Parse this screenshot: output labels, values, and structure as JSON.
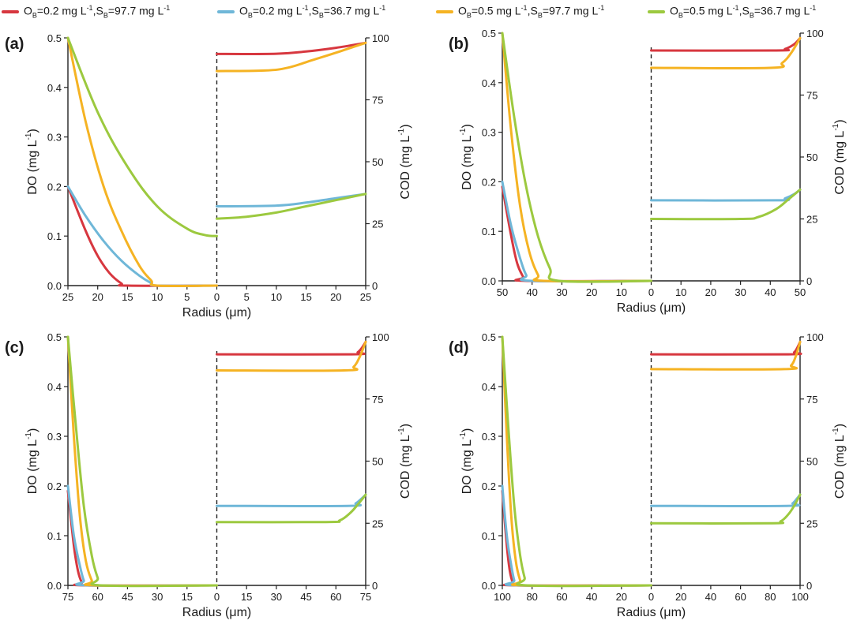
{
  "legend": [
    {
      "o": "0.2",
      "s": "97.7",
      "color": "#d7373f"
    },
    {
      "o": "0.2",
      "s": "36.7",
      "color": "#6fb7d8"
    },
    {
      "o": "0.5",
      "s": "97.7",
      "color": "#f5b323"
    },
    {
      "o": "0.5",
      "s": "36.7",
      "color": "#9cc93f"
    }
  ],
  "legend_text": {
    "O": "O",
    "S": "S",
    "B": "B",
    "mid1": "=",
    "mid2": " mg L",
    "exp": "-1",
    "sep": ",",
    "equals": "=",
    "tail": " mg L"
  },
  "chart_data": [
    {
      "panel": "(a)",
      "type": "line",
      "xlabel": "Radius (μm)",
      "ylabel_left": "DO (mg L",
      "ylabel_right": "COD (mg L",
      "ylabel_exp": "-1",
      "ylabel_close": ")",
      "radius_max": 25,
      "x_ticks_left": [
        "25",
        "20",
        "15",
        "10",
        "5",
        "0"
      ],
      "x_ticks_right": [
        "0",
        "5",
        "10",
        "15",
        "20",
        "25"
      ],
      "ylim_do": [
        0,
        0.5
      ],
      "yticks_do": [
        "0.0",
        "0.1",
        "0.2",
        "0.3",
        "0.4",
        "0.5"
      ],
      "ylim_cod": [
        0,
        100
      ],
      "yticks_cod": [
        "0",
        "25",
        "50",
        "75",
        "100"
      ],
      "do_series": [
        {
          "color": "#d7373f",
          "x": [
            25,
            22,
            20,
            18,
            16,
            15,
            0
          ],
          "y": [
            0.2,
            0.11,
            0.06,
            0.025,
            0.004,
            0,
            0
          ]
        },
        {
          "color": "#6fb7d8",
          "x": [
            25,
            22,
            19,
            16,
            13,
            11,
            10,
            0
          ],
          "y": [
            0.2,
            0.14,
            0.09,
            0.05,
            0.02,
            0.005,
            0,
            0
          ]
        },
        {
          "color": "#f5b323",
          "x": [
            25,
            22,
            19,
            16,
            13,
            11,
            10,
            0
          ],
          "y": [
            0.5,
            0.33,
            0.2,
            0.11,
            0.04,
            0.01,
            0,
            0
          ]
        },
        {
          "color": "#9cc93f",
          "x": [
            25,
            20,
            15,
            10,
            5,
            2,
            0
          ],
          "y": [
            0.5,
            0.35,
            0.24,
            0.16,
            0.115,
            0.102,
            0.1
          ]
        }
      ],
      "cod_series": [
        {
          "color": "#d7373f",
          "x": [
            0,
            10,
            15,
            20,
            25
          ],
          "y": [
            93.5,
            93.6,
            94.5,
            96,
            98
          ]
        },
        {
          "color": "#6fb7d8",
          "x": [
            0,
            10,
            15,
            20,
            25
          ],
          "y": [
            32,
            32.3,
            33.5,
            35.3,
            37
          ]
        },
        {
          "color": "#f5b323",
          "x": [
            0,
            8,
            12,
            16,
            20,
            25
          ],
          "y": [
            86.6,
            86.8,
            88,
            91,
            94,
            98
          ]
        },
        {
          "color": "#9cc93f",
          "x": [
            0,
            5,
            10,
            15,
            20,
            25
          ],
          "y": [
            27,
            27.8,
            29.5,
            32,
            34.5,
            37
          ]
        }
      ]
    },
    {
      "panel": "(b)",
      "type": "line",
      "xlabel": "Radius (μm)",
      "ylabel_left": "DO (mg L",
      "ylabel_right": "COD (mg L",
      "ylabel_exp": "-1",
      "ylabel_close": ")",
      "radius_max": 50,
      "x_ticks_left": [
        "50",
        "40",
        "30",
        "20",
        "10",
        "0"
      ],
      "x_ticks_right": [
        "0",
        "10",
        "20",
        "30",
        "40",
        "50"
      ],
      "ylim_do": [
        0,
        0.5
      ],
      "yticks_do": [
        "0.0",
        "0.1",
        "0.2",
        "0.3",
        "0.4",
        "0.5"
      ],
      "ylim_cod": [
        0,
        100
      ],
      "yticks_cod": [
        "0",
        "25",
        "50",
        "75",
        "100"
      ],
      "do_series": [
        {
          "color": "#d7373f",
          "x": [
            50,
            47,
            45,
            43,
            42,
            0
          ],
          "y": [
            0.19,
            0.09,
            0.035,
            0.008,
            0,
            0
          ]
        },
        {
          "color": "#6fb7d8",
          "x": [
            50,
            47,
            44,
            42,
            40,
            0
          ],
          "y": [
            0.2,
            0.11,
            0.045,
            0.012,
            0,
            0
          ]
        },
        {
          "color": "#f5b323",
          "x": [
            50,
            47,
            44,
            41,
            38,
            36,
            0
          ],
          "y": [
            0.5,
            0.3,
            0.15,
            0.06,
            0.012,
            0,
            0
          ]
        },
        {
          "color": "#9cc93f",
          "x": [
            50,
            46,
            42,
            38,
            34,
            31,
            0
          ],
          "y": [
            0.5,
            0.33,
            0.19,
            0.09,
            0.025,
            0,
            0
          ]
        }
      ],
      "cod_series": [
        {
          "color": "#d7373f",
          "x": [
            0,
            42,
            45,
            48,
            50
          ],
          "y": [
            93,
            93,
            93.6,
            95.5,
            98
          ]
        },
        {
          "color": "#6fb7d8",
          "x": [
            0,
            42,
            45,
            48,
            50
          ],
          "y": [
            32.5,
            32.5,
            33.3,
            35,
            36.8
          ]
        },
        {
          "color": "#f5b323",
          "x": [
            0,
            40,
            44,
            47,
            50
          ],
          "y": [
            86,
            86,
            88,
            92,
            98
          ]
        },
        {
          "color": "#9cc93f",
          "x": [
            0,
            30,
            36,
            42,
            46,
            50
          ],
          "y": [
            25,
            25,
            25.8,
            29,
            32.8,
            36.8
          ]
        }
      ]
    },
    {
      "panel": "(c)",
      "type": "line",
      "xlabel": "Radius (μm)",
      "ylabel_left": "DO (mg L",
      "ylabel_right": "COD (mg L",
      "ylabel_exp": "-1",
      "ylabel_close": ")",
      "radius_max": 75,
      "x_ticks_left": [
        "75",
        "60",
        "45",
        "30",
        "15",
        "0"
      ],
      "x_ticks_right": [
        "0",
        "15",
        "30",
        "45",
        "60",
        "75"
      ],
      "ylim_do": [
        0,
        0.5
      ],
      "yticks_do": [
        "0.0",
        "0.1",
        "0.2",
        "0.3",
        "0.4",
        "0.5"
      ],
      "ylim_cod": [
        0,
        100
      ],
      "yticks_cod": [
        "0",
        "25",
        "50",
        "75",
        "100"
      ],
      "do_series": [
        {
          "color": "#d7373f",
          "x": [
            75,
            72,
            70,
            68,
            66,
            0
          ],
          "y": [
            0.19,
            0.08,
            0.03,
            0.006,
            0,
            0
          ]
        },
        {
          "color": "#6fb7d8",
          "x": [
            75,
            72,
            69,
            67,
            65,
            0
          ],
          "y": [
            0.2,
            0.1,
            0.04,
            0.01,
            0,
            0
          ]
        },
        {
          "color": "#f5b323",
          "x": [
            75,
            72,
            69,
            66,
            63,
            61,
            0
          ],
          "y": [
            0.5,
            0.3,
            0.14,
            0.05,
            0.01,
            0,
            0
          ]
        },
        {
          "color": "#9cc93f",
          "x": [
            75,
            71,
            67,
            63,
            60,
            58,
            0
          ],
          "y": [
            0.5,
            0.32,
            0.16,
            0.06,
            0.015,
            0,
            0
          ]
        }
      ],
      "cod_series": [
        {
          "color": "#d7373f",
          "x": [
            0,
            68,
            71,
            73,
            75
          ],
          "y": [
            93,
            93,
            93.8,
            95.5,
            98
          ]
        },
        {
          "color": "#6fb7d8",
          "x": [
            0,
            66,
            70,
            73,
            75
          ],
          "y": [
            32,
            32,
            33,
            35,
            36.5
          ]
        },
        {
          "color": "#f5b323",
          "x": [
            0,
            64,
            69,
            72,
            75
          ],
          "y": [
            86.5,
            86.5,
            88,
            92,
            98
          ]
        },
        {
          "color": "#9cc93f",
          "x": [
            0,
            55,
            62,
            67,
            71,
            75
          ],
          "y": [
            25.5,
            25.5,
            26.2,
            29,
            32.5,
            36.5
          ]
        }
      ]
    },
    {
      "panel": "(d)",
      "type": "line",
      "xlabel": "Radius (μm)",
      "ylabel_left": "DO (mg L",
      "ylabel_right": "COD (mg L",
      "ylabel_exp": "-1",
      "ylabel_close": ")",
      "radius_max": 100,
      "x_ticks_left": [
        "100",
        "80",
        "60",
        "40",
        "20",
        "0"
      ],
      "x_ticks_right": [
        "0",
        "20",
        "40",
        "60",
        "80",
        "100"
      ],
      "ylim_do": [
        0,
        0.5
      ],
      "yticks_do": [
        "0.0",
        "0.1",
        "0.2",
        "0.3",
        "0.4",
        "0.5"
      ],
      "ylim_cod": [
        0,
        100
      ],
      "yticks_cod": [
        "0",
        "25",
        "50",
        "75",
        "100"
      ],
      "do_series": [
        {
          "color": "#d7373f",
          "x": [
            100,
            97,
            95,
            93,
            91,
            0
          ],
          "y": [
            0.19,
            0.08,
            0.03,
            0.006,
            0,
            0
          ]
        },
        {
          "color": "#6fb7d8",
          "x": [
            100,
            97,
            94,
            92,
            90,
            0
          ],
          "y": [
            0.2,
            0.1,
            0.04,
            0.01,
            0,
            0
          ]
        },
        {
          "color": "#f5b323",
          "x": [
            100,
            97,
            94,
            91,
            88,
            86,
            0
          ],
          "y": [
            0.5,
            0.3,
            0.14,
            0.05,
            0.01,
            0,
            0
          ]
        },
        {
          "color": "#9cc93f",
          "x": [
            100,
            96,
            92,
            88,
            85,
            83,
            0
          ],
          "y": [
            0.5,
            0.32,
            0.16,
            0.06,
            0.015,
            0,
            0
          ]
        }
      ],
      "cod_series": [
        {
          "color": "#d7373f",
          "x": [
            0,
            92,
            96,
            98,
            100
          ],
          "y": [
            93,
            93,
            93.8,
            95.5,
            98
          ]
        },
        {
          "color": "#6fb7d8",
          "x": [
            0,
            91,
            95,
            98,
            100
          ],
          "y": [
            32,
            32,
            33,
            35,
            36.5
          ]
        },
        {
          "color": "#f5b323",
          "x": [
            0,
            89,
            94,
            97,
            100
          ],
          "y": [
            87,
            87,
            88.5,
            92,
            98
          ]
        },
        {
          "color": "#9cc93f",
          "x": [
            0,
            80,
            87,
            92,
            96,
            100
          ],
          "y": [
            25,
            25,
            25.8,
            28.5,
            32,
            36.5
          ]
        }
      ]
    }
  ]
}
